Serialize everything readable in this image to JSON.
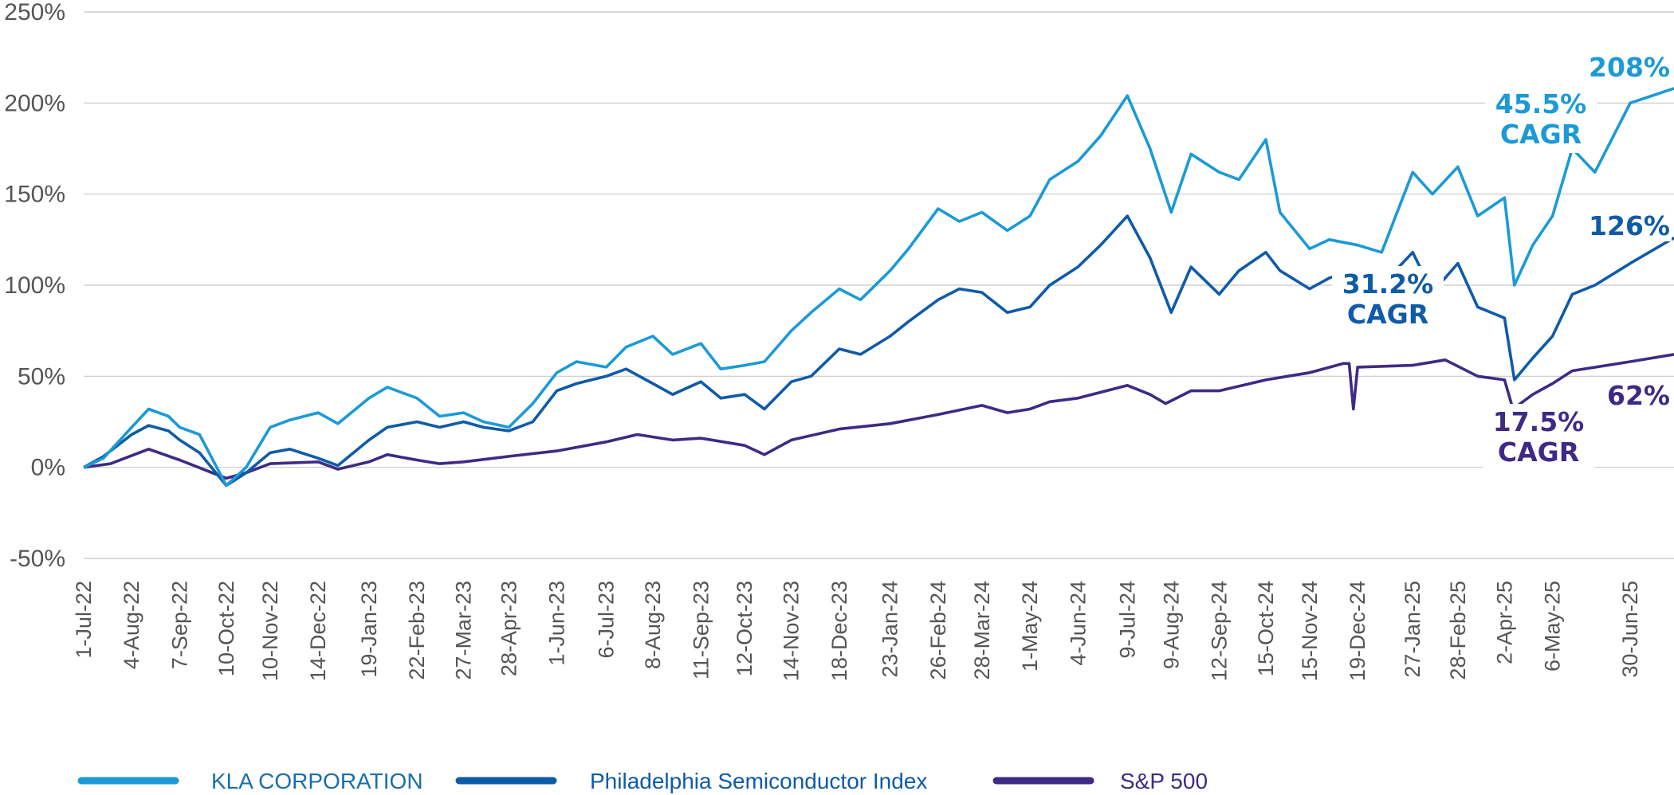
{
  "chart_data": {
    "type": "line",
    "ylim": [
      -50,
      250
    ],
    "yticks": [
      -50,
      0,
      50,
      100,
      150,
      200,
      250
    ],
    "ytick_labels": [
      "-50%",
      "0%",
      "50%",
      "100%",
      "150%",
      "200%",
      "250%"
    ],
    "xlim": [
      "2022-07-01",
      "2025-07-31"
    ],
    "xtick_labels": [
      "1-Jul-22",
      "4-Aug-22",
      "7-Sep-22",
      "10-Oct-22",
      "10-Nov-22",
      "14-Dec-22",
      "19-Jan-23",
      "22-Feb-23",
      "27-Mar-23",
      "28-Apr-23",
      "1-Jun-23",
      "6-Jul-23",
      "8-Aug-23",
      "11-Sep-23",
      "12-Oct-23",
      "14-Nov-23",
      "18-Dec-23",
      "23-Jan-24",
      "26-Feb-24",
      "28-Mar-24",
      "1-May-24",
      "4-Jun-24",
      "9-Jul-24",
      "9-Aug-24",
      "12-Sep-24",
      "15-Oct-24",
      "15-Nov-24",
      "19-Dec-24",
      "27-Jan-25",
      "28-Feb-25",
      "2-Apr-25",
      "6-May-25",
      "30-Jun-25"
    ],
    "xtick_dates": [
      "2022-07-01",
      "2022-08-04",
      "2022-09-07",
      "2022-10-10",
      "2022-11-10",
      "2022-12-14",
      "2023-01-19",
      "2023-02-22",
      "2023-03-27",
      "2023-04-28",
      "2023-06-01",
      "2023-07-06",
      "2023-08-08",
      "2023-09-11",
      "2023-10-12",
      "2023-11-14",
      "2023-12-18",
      "2024-01-23",
      "2024-02-26",
      "2024-03-28",
      "2024-05-01",
      "2024-06-04",
      "2024-07-09",
      "2024-08-09",
      "2024-09-12",
      "2024-10-15",
      "2024-11-15",
      "2024-12-19",
      "2025-01-27",
      "2025-02-28",
      "2025-04-02",
      "2025-05-06",
      "2025-06-30"
    ],
    "grid": true,
    "legend_position": "bottom",
    "series": [
      {
        "name": "KLA CORPORATION",
        "color": "#1B9AD6",
        "points": [
          [
            "2022-07-01",
            0
          ],
          [
            "2022-07-15",
            5
          ],
          [
            "2022-08-04",
            22
          ],
          [
            "2022-08-16",
            32
          ],
          [
            "2022-08-30",
            28
          ],
          [
            "2022-09-07",
            22
          ],
          [
            "2022-09-21",
            18
          ],
          [
            "2022-10-10",
            -10
          ],
          [
            "2022-10-24",
            0
          ],
          [
            "2022-11-10",
            22
          ],
          [
            "2022-11-24",
            26
          ],
          [
            "2022-12-14",
            30
          ],
          [
            "2022-12-28",
            24
          ],
          [
            "2023-01-19",
            38
          ],
          [
            "2023-02-01",
            44
          ],
          [
            "2023-02-22",
            38
          ],
          [
            "2023-03-10",
            28
          ],
          [
            "2023-03-27",
            30
          ],
          [
            "2023-04-10",
            25
          ],
          [
            "2023-04-28",
            22
          ],
          [
            "2023-05-15",
            35
          ],
          [
            "2023-06-01",
            52
          ],
          [
            "2023-06-15",
            58
          ],
          [
            "2023-07-06",
            55
          ],
          [
            "2023-07-20",
            66
          ],
          [
            "2023-08-08",
            72
          ],
          [
            "2023-08-22",
            62
          ],
          [
            "2023-09-11",
            68
          ],
          [
            "2023-09-25",
            54
          ],
          [
            "2023-10-12",
            56
          ],
          [
            "2023-10-26",
            58
          ],
          [
            "2023-11-14",
            75
          ],
          [
            "2023-11-28",
            85
          ],
          [
            "2023-12-18",
            98
          ],
          [
            "2024-01-02",
            92
          ],
          [
            "2024-01-23",
            108
          ],
          [
            "2024-02-05",
            120
          ],
          [
            "2024-02-26",
            142
          ],
          [
            "2024-03-12",
            135
          ],
          [
            "2024-03-28",
            140
          ],
          [
            "2024-04-15",
            130
          ],
          [
            "2024-05-01",
            138
          ],
          [
            "2024-05-15",
            158
          ],
          [
            "2024-06-04",
            168
          ],
          [
            "2024-06-20",
            182
          ],
          [
            "2024-07-09",
            204
          ],
          [
            "2024-07-25",
            175
          ],
          [
            "2024-08-09",
            140
          ],
          [
            "2024-08-23",
            172
          ],
          [
            "2024-09-12",
            162
          ],
          [
            "2024-09-26",
            158
          ],
          [
            "2024-10-15",
            180
          ],
          [
            "2024-10-25",
            140
          ],
          [
            "2024-11-15",
            120
          ],
          [
            "2024-11-29",
            125
          ],
          [
            "2024-12-19",
            122
          ],
          [
            "2025-01-05",
            118
          ],
          [
            "2025-01-27",
            162
          ],
          [
            "2025-02-10",
            150
          ],
          [
            "2025-02-28",
            165
          ],
          [
            "2025-03-14",
            138
          ],
          [
            "2025-04-02",
            148
          ],
          [
            "2025-04-09",
            100
          ],
          [
            "2025-04-22",
            122
          ],
          [
            "2025-05-06",
            138
          ],
          [
            "2025-05-20",
            175
          ],
          [
            "2025-06-05",
            162
          ],
          [
            "2025-06-30",
            200
          ],
          [
            "2025-07-31",
            208
          ]
        ]
      },
      {
        "name": "Philadelphia Semiconductor Index",
        "color": "#0E5BA8",
        "points": [
          [
            "2022-07-01",
            0
          ],
          [
            "2022-07-15",
            6
          ],
          [
            "2022-08-04",
            18
          ],
          [
            "2022-08-16",
            23
          ],
          [
            "2022-08-30",
            20
          ],
          [
            "2022-09-07",
            15
          ],
          [
            "2022-09-21",
            8
          ],
          [
            "2022-10-10",
            -10
          ],
          [
            "2022-10-24",
            -3
          ],
          [
            "2022-11-10",
            8
          ],
          [
            "2022-11-24",
            10
          ],
          [
            "2022-12-14",
            5
          ],
          [
            "2022-12-28",
            1
          ],
          [
            "2023-01-19",
            15
          ],
          [
            "2023-02-01",
            22
          ],
          [
            "2023-02-22",
            25
          ],
          [
            "2023-03-10",
            22
          ],
          [
            "2023-03-27",
            25
          ],
          [
            "2023-04-10",
            22
          ],
          [
            "2023-04-28",
            20
          ],
          [
            "2023-05-15",
            25
          ],
          [
            "2023-06-01",
            42
          ],
          [
            "2023-06-15",
            46
          ],
          [
            "2023-07-06",
            50
          ],
          [
            "2023-07-20",
            54
          ],
          [
            "2023-08-08",
            46
          ],
          [
            "2023-08-22",
            40
          ],
          [
            "2023-09-11",
            47
          ],
          [
            "2023-09-25",
            38
          ],
          [
            "2023-10-12",
            40
          ],
          [
            "2023-10-26",
            32
          ],
          [
            "2023-11-14",
            47
          ],
          [
            "2023-11-28",
            50
          ],
          [
            "2023-12-18",
            65
          ],
          [
            "2024-01-02",
            62
          ],
          [
            "2024-01-23",
            72
          ],
          [
            "2024-02-05",
            80
          ],
          [
            "2024-02-26",
            92
          ],
          [
            "2024-03-12",
            98
          ],
          [
            "2024-03-28",
            96
          ],
          [
            "2024-04-15",
            85
          ],
          [
            "2024-05-01",
            88
          ],
          [
            "2024-05-15",
            100
          ],
          [
            "2024-06-04",
            110
          ],
          [
            "2024-06-20",
            122
          ],
          [
            "2024-07-09",
            138
          ],
          [
            "2024-07-25",
            115
          ],
          [
            "2024-08-09",
            85
          ],
          [
            "2024-08-23",
            110
          ],
          [
            "2024-09-12",
            95
          ],
          [
            "2024-09-26",
            108
          ],
          [
            "2024-10-15",
            118
          ],
          [
            "2024-10-25",
            108
          ],
          [
            "2024-11-15",
            98
          ],
          [
            "2024-11-29",
            104
          ],
          [
            "2024-12-19",
            108
          ],
          [
            "2025-01-05",
            100
          ],
          [
            "2025-01-27",
            118
          ],
          [
            "2025-02-10",
            96
          ],
          [
            "2025-02-28",
            112
          ],
          [
            "2025-03-14",
            88
          ],
          [
            "2025-04-02",
            82
          ],
          [
            "2025-04-09",
            48
          ],
          [
            "2025-04-22",
            60
          ],
          [
            "2025-05-06",
            72
          ],
          [
            "2025-05-20",
            95
          ],
          [
            "2025-06-05",
            100
          ],
          [
            "2025-06-30",
            112
          ],
          [
            "2025-07-31",
            126
          ]
        ]
      },
      {
        "name": "S&P 500",
        "color": "#3E2A85",
        "points": [
          [
            "2022-07-01",
            0
          ],
          [
            "2022-07-20",
            2
          ],
          [
            "2022-08-16",
            10
          ],
          [
            "2022-09-07",
            4
          ],
          [
            "2022-10-10",
            -6
          ],
          [
            "2022-10-24",
            -3
          ],
          [
            "2022-11-10",
            2
          ],
          [
            "2022-12-14",
            3
          ],
          [
            "2022-12-28",
            -1
          ],
          [
            "2023-01-19",
            3
          ],
          [
            "2023-02-01",
            7
          ],
          [
            "2023-02-22",
            4
          ],
          [
            "2023-03-10",
            2
          ],
          [
            "2023-03-27",
            3
          ],
          [
            "2023-04-28",
            6
          ],
          [
            "2023-06-01",
            9
          ],
          [
            "2023-07-06",
            14
          ],
          [
            "2023-07-28",
            18
          ],
          [
            "2023-08-22",
            15
          ],
          [
            "2023-09-11",
            16
          ],
          [
            "2023-10-12",
            12
          ],
          [
            "2023-10-26",
            7
          ],
          [
            "2023-11-14",
            15
          ],
          [
            "2023-12-18",
            21
          ],
          [
            "2024-01-23",
            24
          ],
          [
            "2024-02-26",
            29
          ],
          [
            "2024-03-28",
            34
          ],
          [
            "2024-04-15",
            30
          ],
          [
            "2024-05-01",
            32
          ],
          [
            "2024-05-15",
            36
          ],
          [
            "2024-06-04",
            38
          ],
          [
            "2024-07-09",
            45
          ],
          [
            "2024-07-25",
            40
          ],
          [
            "2024-08-05",
            35
          ],
          [
            "2024-08-23",
            42
          ],
          [
            "2024-09-12",
            42
          ],
          [
            "2024-10-15",
            48
          ],
          [
            "2024-11-15",
            52
          ],
          [
            "2024-12-09",
            57
          ],
          [
            "2024-12-13",
            57
          ],
          [
            "2024-12-16",
            32
          ],
          [
            "2024-12-19",
            55
          ],
          [
            "2025-01-27",
            56
          ],
          [
            "2025-02-19",
            59
          ],
          [
            "2025-03-14",
            50
          ],
          [
            "2025-04-02",
            48
          ],
          [
            "2025-04-08",
            32
          ],
          [
            "2025-04-22",
            40
          ],
          [
            "2025-05-06",
            46
          ],
          [
            "2025-05-20",
            53
          ],
          [
            "2025-06-30",
            58
          ],
          [
            "2025-07-31",
            62
          ]
        ]
      }
    ],
    "annotations": [
      {
        "series": "KLA CORPORATION",
        "lines": [
          "208%"
        ],
        "color": "#1B9AD6"
      },
      {
        "series": "KLA CORPORATION",
        "lines": [
          "45.5%",
          "CAGR"
        ],
        "color": "#1B9AD6"
      },
      {
        "series": "Philadelphia Semiconductor Index",
        "lines": [
          "126%"
        ],
        "color": "#0E5BA8"
      },
      {
        "series": "Philadelphia Semiconductor Index",
        "lines": [
          "31.2%",
          "CAGR"
        ],
        "color": "#0E5BA8"
      },
      {
        "series": "S&P 500",
        "lines": [
          "62%"
        ],
        "color": "#3E2A85"
      },
      {
        "series": "S&P 500",
        "lines": [
          "17.5%",
          "CAGR"
        ],
        "color": "#3E2A85"
      }
    ]
  }
}
